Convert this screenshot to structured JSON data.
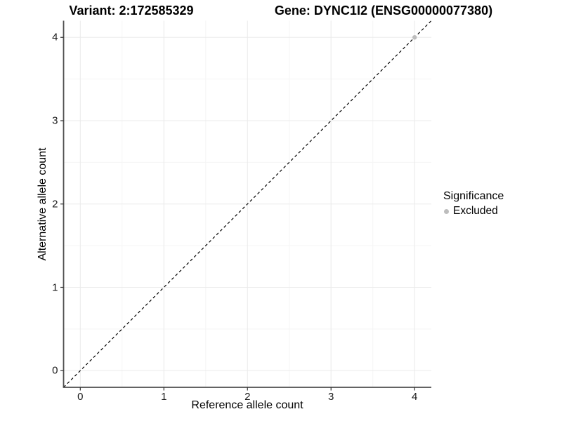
{
  "figure": {
    "title_left": "Variant: 2:172585329",
    "title_right": "Gene: DYNC1I2 (ENSG00000077380)"
  },
  "chart_data": {
    "type": "scatter",
    "title_left": "Variant: 2:172585329",
    "title_right": "Gene: DYNC1I2 (ENSG00000077380)",
    "xlabel": "Reference allele count",
    "ylabel": "Alternative allele count",
    "xlim": [
      -0.2,
      4.2
    ],
    "ylim": [
      -0.2,
      4.2
    ],
    "xticks": [
      0,
      1,
      2,
      3,
      4
    ],
    "yticks": [
      0,
      1,
      2,
      3,
      4
    ],
    "grid": "major+minor",
    "reference_line": {
      "slope": 1,
      "intercept": 0,
      "style": "dashed",
      "color": "#000000"
    },
    "points": [
      {
        "x": 4,
        "y": 4,
        "series": "Excluded"
      }
    ],
    "legend": {
      "title": "Significance",
      "position": "right",
      "items": [
        {
          "label": "Excluded",
          "color": "#bdbdbd"
        }
      ]
    },
    "colors": {
      "background": "#ffffff",
      "grid_major": "#ebebeb",
      "grid_minor": "#f5f5f5",
      "axis_line": "#4d4d4d",
      "tick_mark": "#333333",
      "tick_label": "#1a1a1a",
      "point": "#bdbdbd",
      "reference_line": "#000000"
    }
  }
}
